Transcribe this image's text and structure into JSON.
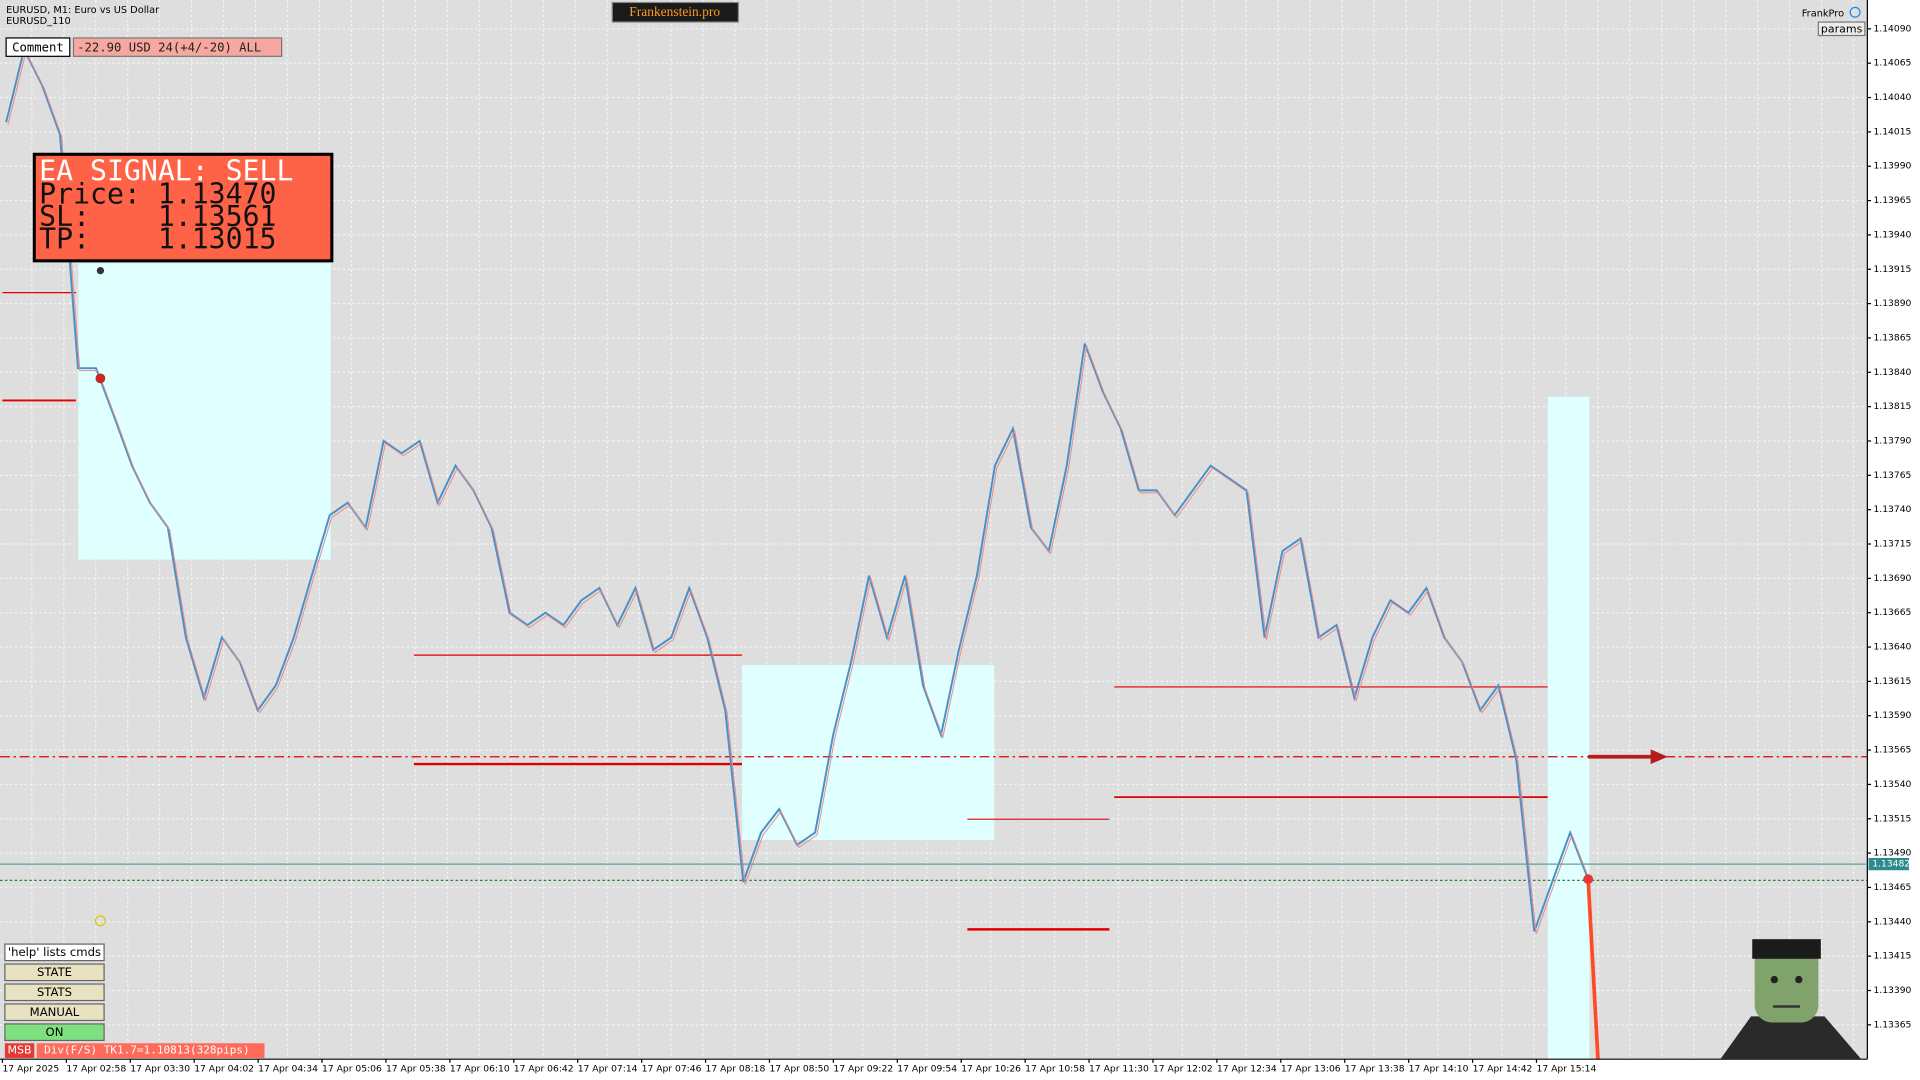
{
  "header": {
    "symbol": "EURUSD, M1:  Euro vs US Dollar",
    "account": "EURUSD_110",
    "brand": "Frankenstein.pro",
    "expert": "FrankPro",
    "params": "params"
  },
  "comment": {
    "label": "Comment",
    "value": "-22.90 USD 24(+4/-20) ALL"
  },
  "signal": {
    "lines": [
      "EA SIGNAL: SELL",
      "Price: 1.13470",
      "SL:    1.13561",
      "TP:    1.13015"
    ]
  },
  "buttons": [
    "'help' lists cmds",
    "STATE",
    "STATS",
    "MANUAL",
    "ON"
  ],
  "status": {
    "tag": "MSB",
    "text": "Div(F/S) TK1.7=1.10813(328pips)"
  },
  "chart": {
    "ylim": [
      1.1334,
      1.14111
    ],
    "yticks": [
      {
        "value": 1.1409,
        "label": "1.14090"
      },
      {
        "value": 1.14065,
        "label": "1.14065"
      },
      {
        "value": 1.1404,
        "label": "1.14040"
      },
      {
        "value": 1.14015,
        "label": "1.14015"
      },
      {
        "value": 1.1399,
        "label": "1.13990"
      },
      {
        "value": 1.13965,
        "label": "1.13965"
      },
      {
        "value": 1.1394,
        "label": "1.13940"
      },
      {
        "value": 1.13915,
        "label": "1.13915"
      },
      {
        "value": 1.1389,
        "label": "1.13890"
      },
      {
        "value": 1.13865,
        "label": "1.13865"
      },
      {
        "value": 1.1384,
        "label": "1.13840"
      },
      {
        "value": 1.13815,
        "label": "1.13815"
      },
      {
        "value": 1.1379,
        "label": "1.13790"
      },
      {
        "value": 1.13765,
        "label": "1.13765"
      },
      {
        "value": 1.1374,
        "label": "1.13740"
      },
      {
        "value": 1.13715,
        "label": "1.13715"
      },
      {
        "value": 1.1369,
        "label": "1.13690"
      },
      {
        "value": 1.13665,
        "label": "1.13665"
      },
      {
        "value": 1.1364,
        "label": "1.13640"
      },
      {
        "value": 1.13615,
        "label": "1.13615"
      },
      {
        "value": 1.1359,
        "label": "1.13590"
      },
      {
        "value": 1.13565,
        "label": "1.13565"
      },
      {
        "value": 1.1354,
        "label": "1.13540"
      },
      {
        "value": 1.13515,
        "label": "1.13515"
      },
      {
        "value": 1.1349,
        "label": "1.13490"
      },
      {
        "value": 1.13465,
        "label": "1.13465"
      },
      {
        "value": 1.1344,
        "label": "1.13440"
      },
      {
        "value": 1.13415,
        "label": "1.13415"
      },
      {
        "value": 1.1339,
        "label": "1.13390"
      },
      {
        "value": 1.13365,
        "label": "1.13365"
      }
    ],
    "current": {
      "value": 1.13482,
      "label": "1.13482"
    },
    "times": [
      "17 Apr 2025",
      "17 Apr 02:58",
      "17 Apr 03:30",
      "17 Apr 04:02",
      "17 Apr 04:34",
      "17 Apr 05:06",
      "17 Apr 05:38",
      "17 Apr 06:10",
      "17 Apr 06:42",
      "17 Apr 07:14",
      "17 Apr 07:46",
      "17 Apr 08:18",
      "17 Apr 08:50",
      "17 Apr 09:22",
      "17 Apr 09:54",
      "17 Apr 10:26",
      "17 Apr 10:58",
      "17 Apr 11:30",
      "17 Apr 12:02",
      "17 Apr 12:34",
      "17 Apr 13:06",
      "17 Apr 13:38",
      "17 Apr 14:10",
      "17 Apr 14:42",
      "17 Apr 15:14"
    ],
    "prices": [
      1.14022,
      1.14075,
      1.14049,
      1.14013,
      1.13843,
      1.13843,
      1.13808,
      1.13772,
      1.13745,
      1.13727,
      1.13647,
      1.13603,
      1.13647,
      1.13629,
      1.13594,
      1.13612,
      1.13647,
      1.13692,
      1.13736,
      1.13745,
      1.13727,
      1.1379,
      1.13781,
      1.1379,
      1.13745,
      1.13772,
      1.13754,
      1.13727,
      1.13665,
      1.13656,
      1.13665,
      1.13656,
      1.13674,
      1.13683,
      1.13656,
      1.13683,
      1.13638,
      1.13647,
      1.13683,
      1.13647,
      1.13594,
      1.13469,
      1.13505,
      1.13522,
      1.13496,
      1.13505,
      1.13576,
      1.13629,
      1.13692,
      1.13647,
      1.13692,
      1.13612,
      1.13576,
      1.13638,
      1.13692,
      1.13772,
      1.13799,
      1.13727,
      1.1371,
      1.13772,
      1.13861,
      1.13826,
      1.13799,
      1.13754,
      1.13754,
      1.13736,
      1.13754,
      1.13772,
      1.13763,
      1.13754,
      1.13647,
      1.1371,
      1.13719,
      1.13647,
      1.13656,
      1.13603,
      1.13647,
      1.13674,
      1.13665,
      1.13683,
      1.13647,
      1.13629,
      1.13594,
      1.13612,
      1.13558,
      1.13433,
      1.13469,
      1.13505,
      1.13471
    ]
  }
}
